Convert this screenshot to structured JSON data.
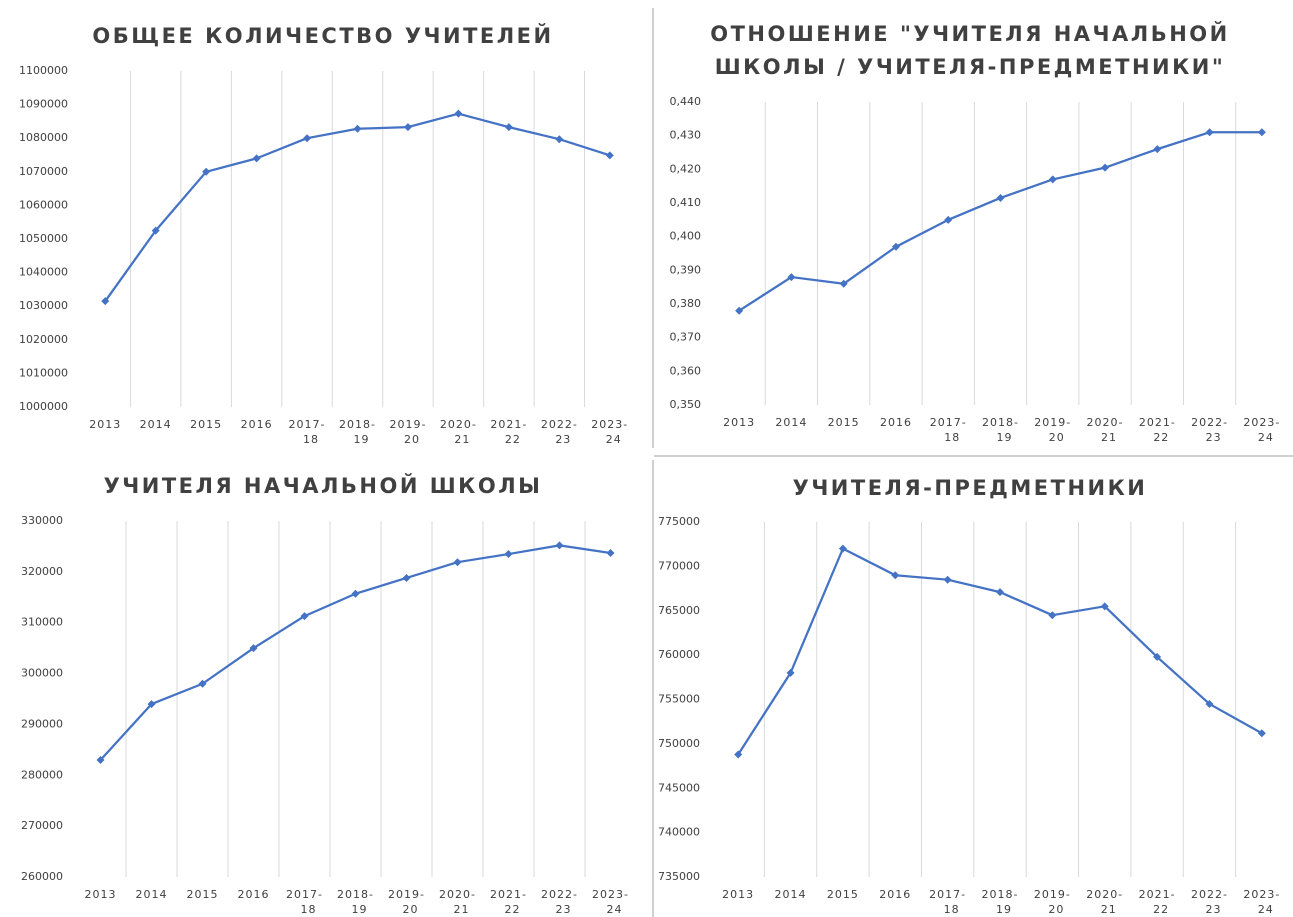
{
  "chart_data": [
    {
      "type": "line",
      "title": "ОБЩЕЕ КОЛИЧЕСТВО УЧИТЕЛЕЙ",
      "categories": [
        "2013",
        "2014",
        "2015",
        "2016",
        "2017-18",
        "2018-19",
        "2019-20",
        "2020-21",
        "2021-22",
        "2022-23",
        "2023-24"
      ],
      "values": [
        1031500,
        1052500,
        1070000,
        1074000,
        1080000,
        1082800,
        1083300,
        1087300,
        1083300,
        1079700,
        1074900
      ],
      "color": "#4472c4",
      "marker": "diamond",
      "grid": true,
      "ylim": [
        1000000,
        1100000
      ],
      "yticks": [
        1000000,
        1010000,
        1020000,
        1030000,
        1040000,
        1050000,
        1060000,
        1070000,
        1080000,
        1090000,
        1100000
      ]
    },
    {
      "type": "line",
      "title": "ОТНОШЕНИЕ \"УЧИТЕЛЯ НАЧАЛЬНОЙ ШКОЛЫ / УЧИТЕЛЯ-ПРЕДМЕТНИКИ\"",
      "categories": [
        "2013",
        "2014",
        "2015",
        "2016",
        "2017-18",
        "2018-19",
        "2019-20",
        "2020-21",
        "2021-22",
        "2022-23",
        "2023-24"
      ],
      "values": [
        0.378,
        0.388,
        0.386,
        0.397,
        0.405,
        0.4115,
        0.417,
        0.4205,
        0.426,
        0.431,
        0.431
      ],
      "color": "#4472c4",
      "marker": "diamond",
      "grid": true,
      "ylim": [
        0.35,
        0.44
      ],
      "yticks": [
        {
          "value": 0.35,
          "label": "0,350"
        },
        {
          "value": 0.36,
          "label": "0,360"
        },
        {
          "value": 0.37,
          "label": "0,370"
        },
        {
          "value": 0.38,
          "label": "0,380"
        },
        {
          "value": 0.39,
          "label": "0,390"
        },
        {
          "value": 0.4,
          "label": "0,400"
        },
        {
          "value": 0.41,
          "label": "0,410"
        },
        {
          "value": 0.42,
          "label": "0,420"
        },
        {
          "value": 0.43,
          "label": "0,430"
        },
        {
          "value": 0.44,
          "label": "0,440"
        }
      ]
    },
    {
      "type": "line",
      "title": "УЧИТЕЛЯ НАЧАЛЬНОЙ ШКОЛЫ",
      "categories": [
        "2013",
        "2014",
        "2015",
        "2016",
        "2017-18",
        "2018-19",
        "2019-20",
        "2020-21",
        "2021-22",
        "2022-23",
        "2023-24"
      ],
      "values": [
        283000,
        294000,
        298000,
        305000,
        311300,
        315700,
        318800,
        321900,
        323500,
        325200,
        323700
      ],
      "color": "#4472c4",
      "marker": "diamond",
      "grid": true,
      "ylim": [
        260000,
        330000
      ],
      "yticks": [
        260000,
        270000,
        280000,
        290000,
        300000,
        310000,
        320000,
        330000
      ]
    },
    {
      "type": "line",
      "title": "УЧИТЕЛЯ-ПРЕДМЕТНИКИ",
      "categories": [
        "2013",
        "2014",
        "2015",
        "2016",
        "2017-18",
        "2018-19",
        "2019-20",
        "2020-21",
        "2021-22",
        "2022-23",
        "2023-24"
      ],
      "values": [
        748800,
        758000,
        772000,
        769000,
        768500,
        767100,
        764500,
        765500,
        759800,
        754500,
        751200
      ],
      "color": "#4472c4",
      "marker": "diamond",
      "grid": true,
      "ylim": [
        735000,
        775000
      ],
      "yticks": [
        735000,
        740000,
        745000,
        750000,
        755000,
        760000,
        765000,
        770000,
        775000
      ]
    }
  ]
}
